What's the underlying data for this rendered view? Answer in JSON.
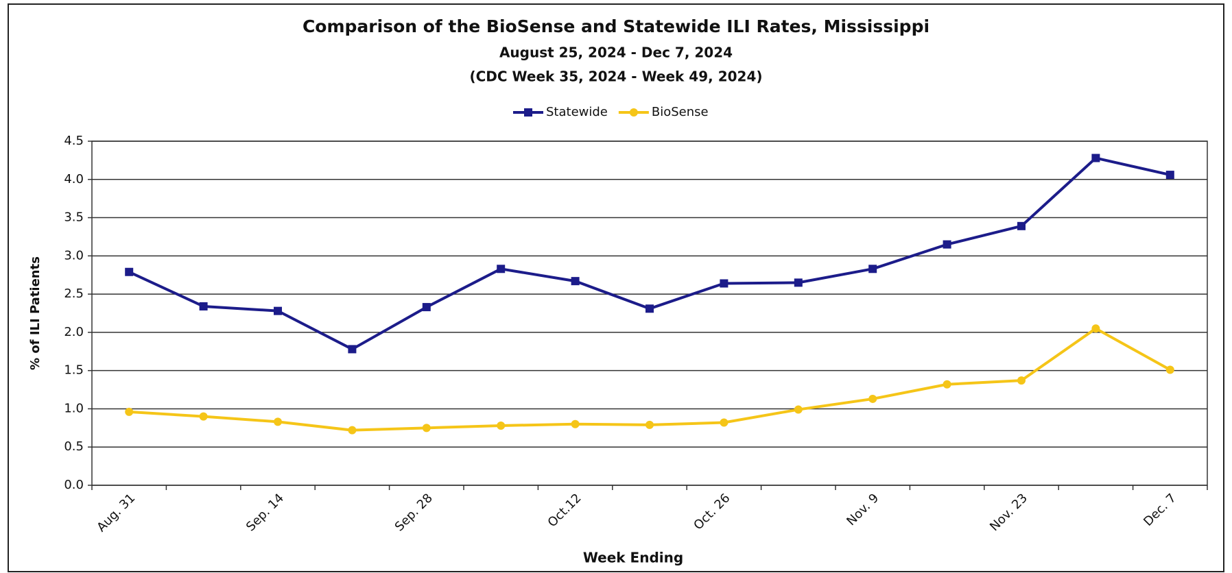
{
  "chart_data": {
    "type": "line",
    "title": "Comparison of the BioSense and Statewide ILI Rates, Mississippi",
    "subtitle": [
      "August 25, 2024 - Dec 7, 2024",
      "(CDC Week 35, 2024 - Week 49, 2024)"
    ],
    "x_label": "Week Ending",
    "y_label": "% of ILI Patients",
    "categories": [
      "Aug. 31",
      null,
      "Sep. 14",
      null,
      "Sep. 28",
      null,
      "Oct.12",
      null,
      "Oct. 26",
      null,
      "Nov. 9",
      null,
      "Nov. 23",
      null,
      "Dec. 7"
    ],
    "series": [
      {
        "name": "Statewide",
        "color": "#1c1c8a",
        "marker": "square",
        "values": [
          2.79,
          2.34,
          2.28,
          1.78,
          2.33,
          2.83,
          2.67,
          2.31,
          2.64,
          2.65,
          2.83,
          3.15,
          3.39,
          4.28,
          4.06
        ]
      },
      {
        "name": "BioSense",
        "color": "#f5c518",
        "marker": "circle",
        "values": [
          0.96,
          0.9,
          0.83,
          0.72,
          0.75,
          0.78,
          0.8,
          0.79,
          0.82,
          0.99,
          1.13,
          1.32,
          1.37,
          2.05,
          1.51
        ]
      }
    ],
    "ylim": [
      0,
      4.5
    ],
    "yticks": [
      {
        "value": 0,
        "label": "0.0"
      },
      0.5,
      {
        "value": 1,
        "label": "1.0"
      },
      1.5,
      {
        "value": 2,
        "label": "2.0"
      },
      2.5,
      {
        "value": 3,
        "label": "3.0"
      },
      3.5,
      {
        "value": 4,
        "label": "4.0"
      },
      4.5
    ],
    "grid": true,
    "legend": "top"
  }
}
